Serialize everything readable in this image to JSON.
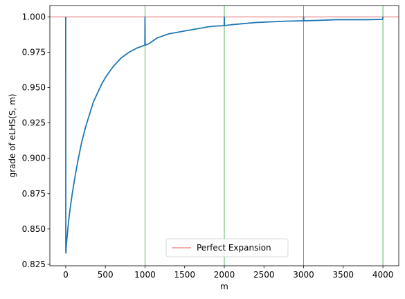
{
  "chart_data": {
    "type": "line",
    "title": "",
    "xlabel": "m",
    "ylabel": "grade of eLHS(S, m)",
    "xlim": [
      -200,
      4200
    ],
    "ylim": [
      0.824,
      1.008
    ],
    "xticks": [
      0,
      500,
      1000,
      1500,
      2000,
      2500,
      3000,
      3500,
      4000
    ],
    "yticks": [
      0.825,
      0.85,
      0.875,
      0.9,
      0.925,
      0.95,
      0.975,
      1.0
    ],
    "xtick_labels": [
      "0",
      "500",
      "1000",
      "1500",
      "2000",
      "2500",
      "3000",
      "3500",
      "4000"
    ],
    "ytick_labels": [
      "0.825",
      "0.850",
      "0.875",
      "0.900",
      "0.925",
      "0.950",
      "0.975",
      "1.000"
    ],
    "grid": false,
    "legend": {
      "placement": "bottom-center",
      "entries": [
        "Perfect Expansion"
      ]
    },
    "reference_lines": {
      "horizontal": {
        "y": 1.0,
        "color": "#d62728",
        "label": "Perfect Expansion"
      },
      "vertical": {
        "x": [
          1000,
          2000,
          3000,
          4000
        ],
        "color": "#2ca02c"
      }
    },
    "series": [
      {
        "color": "#1f77b4",
        "x": [
          0,
          1,
          3,
          5,
          10,
          15,
          20,
          30,
          40,
          50,
          60,
          80,
          100,
          130,
          160,
          200,
          250,
          300,
          350,
          400,
          450,
          500,
          550,
          600,
          650,
          700,
          750,
          800,
          850,
          900,
          950,
          998,
          1000,
          1002,
          1050,
          1100,
          1150,
          1200,
          1300,
          1400,
          1500,
          1600,
          1700,
          1800,
          1900,
          1998,
          2000,
          2002,
          2100,
          2200,
          2400,
          2600,
          2800,
          2998,
          3000,
          3002,
          3200,
          3400,
          3600,
          3800,
          3998,
          4000
        ],
        "y": [
          1.0,
          0.834,
          0.833,
          0.836,
          0.84,
          0.843,
          0.846,
          0.852,
          0.857,
          0.862,
          0.866,
          0.874,
          0.881,
          0.891,
          0.9,
          0.911,
          0.922,
          0.931,
          0.94,
          0.946,
          0.952,
          0.957,
          0.961,
          0.965,
          0.968,
          0.971,
          0.973,
          0.975,
          0.9765,
          0.978,
          0.979,
          0.98,
          1.0,
          0.98,
          0.981,
          0.983,
          0.985,
          0.986,
          0.988,
          0.989,
          0.99,
          0.991,
          0.992,
          0.993,
          0.9935,
          0.9938,
          1.0,
          0.9938,
          0.9945,
          0.995,
          0.996,
          0.9965,
          0.997,
          0.9972,
          1.0,
          0.9972,
          0.9975,
          0.998,
          0.998,
          0.998,
          0.9982,
          1.0
        ]
      }
    ]
  }
}
